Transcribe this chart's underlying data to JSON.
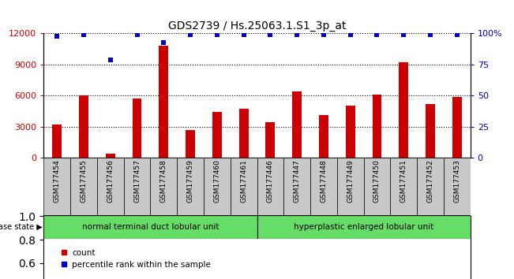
{
  "title": "GDS2739 / Hs.25063.1.S1_3p_at",
  "categories": [
    "GSM177454",
    "GSM177455",
    "GSM177456",
    "GSM177457",
    "GSM177458",
    "GSM177459",
    "GSM177460",
    "GSM177461",
    "GSM177446",
    "GSM177447",
    "GSM177448",
    "GSM177449",
    "GSM177450",
    "GSM177451",
    "GSM177452",
    "GSM177453"
  ],
  "counts": [
    3200,
    6000,
    350,
    5700,
    10800,
    2700,
    4400,
    4700,
    3400,
    6400,
    4100,
    5000,
    6100,
    9200,
    5200,
    5900
  ],
  "percentiles": [
    98,
    99,
    79,
    99,
    93,
    99,
    99,
    99,
    99,
    99,
    99,
    99,
    99,
    99,
    99,
    99
  ],
  "group1_label": "normal terminal duct lobular unit",
  "group1_count": 8,
  "group2_label": "hyperplastic enlarged lobular unit",
  "group2_count": 8,
  "disease_state_label": "disease state",
  "ylim_left": [
    0,
    12000
  ],
  "ylim_right": [
    0,
    100
  ],
  "yticks_left": [
    0,
    3000,
    6000,
    9000,
    12000
  ],
  "yticks_right": [
    0,
    25,
    50,
    75,
    100
  ],
  "bar_color": "#cc0000",
  "scatter_color": "#0000cc",
  "group_bg": "#66dd66",
  "xlabel_bg": "#c8c8c8",
  "bg_color": "#ffffff",
  "legend_count_label": "count",
  "legend_pct_label": "percentile rank within the sample",
  "title_fontsize": 10,
  "tick_fontsize": 6.5,
  "bar_width": 0.35
}
